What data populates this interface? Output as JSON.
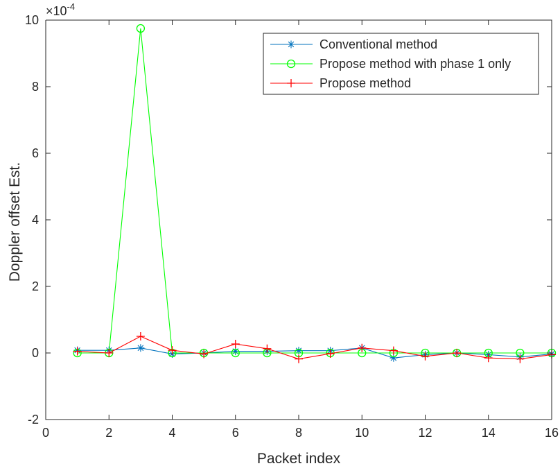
{
  "chart_data": {
    "type": "line",
    "title": "",
    "xlabel": "Packet index",
    "ylabel": "Doppler offset Est.",
    "exponent_label": "×10",
    "exponent_power": "-4",
    "xlim": [
      0,
      16
    ],
    "ylim": [
      -2,
      10
    ],
    "xticks": [
      0,
      2,
      4,
      6,
      8,
      10,
      12,
      14,
      16
    ],
    "yticks": [
      -2,
      0,
      2,
      4,
      6,
      8,
      10
    ],
    "grid": false,
    "legend_position": "top-right",
    "x": [
      1,
      2,
      3,
      4,
      5,
      6,
      7,
      8,
      9,
      10,
      11,
      12,
      13,
      14,
      15,
      16
    ],
    "series": [
      {
        "name": "Conventional method",
        "color": "#0072BD",
        "marker": "asterisk",
        "values": [
          0.08,
          0.08,
          0.15,
          -0.03,
          0.0,
          0.05,
          0.05,
          0.07,
          0.07,
          0.15,
          -0.15,
          -0.05,
          0.0,
          -0.05,
          -0.12,
          -0.03
        ]
      },
      {
        "name": "Propose method with phase 1 only",
        "color": "#00FF00",
        "marker": "circle",
        "values": [
          0.0,
          0.0,
          9.75,
          0.0,
          0.0,
          0.0,
          0.0,
          0.0,
          0.0,
          0.0,
          0.0,
          0.0,
          0.0,
          0.0,
          0.0,
          0.0
        ]
      },
      {
        "name": "Propose method",
        "color": "#FF0000",
        "marker": "plus",
        "values": [
          0.05,
          0.0,
          0.5,
          0.08,
          -0.03,
          0.27,
          0.13,
          -0.18,
          -0.02,
          0.15,
          0.07,
          -0.1,
          0.0,
          -0.15,
          -0.18,
          -0.05
        ]
      }
    ]
  }
}
